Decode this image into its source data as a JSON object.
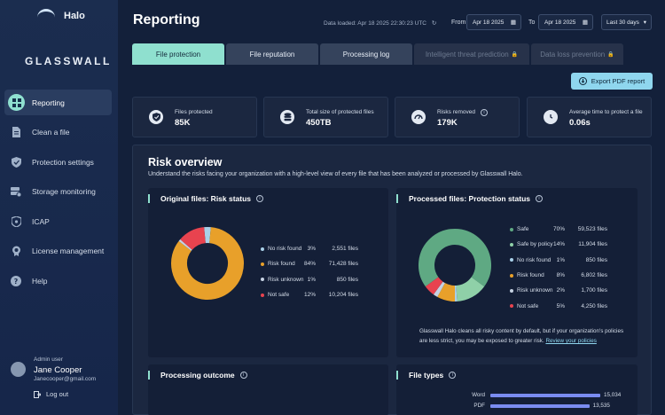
{
  "sidebar": {
    "brand": "Halo",
    "logo": "GLASSWALL",
    "items": [
      {
        "label": "Reporting",
        "icon": "grid-icon",
        "active": true
      },
      {
        "label": "Clean a file",
        "icon": "document-icon"
      },
      {
        "label": "Protection settings",
        "icon": "shield-check-icon"
      },
      {
        "label": "Storage monitoring",
        "icon": "storage-icon"
      },
      {
        "label": "ICAP",
        "icon": "shield-icon"
      },
      {
        "label": "License management",
        "icon": "badge-icon"
      },
      {
        "label": "Help",
        "icon": "help-icon"
      }
    ],
    "user": {
      "role": "Admin user",
      "name": "Jane Cooper",
      "email": "Janecooper@gmail.com"
    },
    "logout_label": "Log out"
  },
  "header": {
    "title": "Reporting",
    "data_loaded": "Data loaded: Apr 18 2025   22:30:23 UTC",
    "from_label": "From",
    "from_date": "Apr 18 2025",
    "to_label": "To",
    "to_date": "Apr 18 2025",
    "range": "Last 30 days"
  },
  "tabs": [
    {
      "label": "File protection",
      "state": "active"
    },
    {
      "label": "File reputation",
      "state": "normal"
    },
    {
      "label": "Processing log",
      "state": "normal"
    },
    {
      "label": "Intelligent threat prediction",
      "state": "disabled"
    },
    {
      "label": "Data loss prevention",
      "state": "disabled"
    }
  ],
  "export_label": "Export PDF report",
  "stats": [
    {
      "label": "Files protected",
      "value": "85K",
      "icon": "shield-icon"
    },
    {
      "label": "Total size of protected files",
      "value": "450TB",
      "icon": "database-icon"
    },
    {
      "label": "Risks removed",
      "value": "179K",
      "icon": "gauge-icon"
    },
    {
      "label": "Average time to protect a file",
      "value": "0.06s",
      "icon": "clock-icon"
    }
  ],
  "risk_overview": {
    "title": "Risk overview",
    "description": "Understand the risks facing your organization with a high-level view of every file that has been analyzed or processed by Glasswall Halo."
  },
  "original_files": {
    "title": "Original files: Risk status",
    "items": [
      {
        "name": "No risk found",
        "pct": "3%",
        "files": "2,551 files",
        "value": 3,
        "color": "#a9d0e8"
      },
      {
        "name": "Risk found",
        "pct": "84%",
        "files": "71,428 files",
        "value": 84,
        "color": "#e8a02a"
      },
      {
        "name": "Risk unknown",
        "pct": "1%",
        "files": "850 files",
        "value": 1,
        "color": "#c6d2e2"
      },
      {
        "name": "Not safe",
        "pct": "12%",
        "files": "10,204 files",
        "value": 12,
        "color": "#e8434f"
      }
    ]
  },
  "processed_files": {
    "title": "Processed files: Protection status",
    "items": [
      {
        "name": "Safe",
        "pct": "70%",
        "files": "59,523 files",
        "value": 70,
        "color": "#5fa983"
      },
      {
        "name": "Safe by policy",
        "pct": "14%",
        "files": "11,904 files",
        "value": 14,
        "color": "#8fd0a8"
      },
      {
        "name": "No risk found",
        "pct": "1%",
        "files": "850 files",
        "value": 1,
        "color": "#a9d0e8"
      },
      {
        "name": "Risk found",
        "pct": "8%",
        "files": "6,802 files",
        "value": 8,
        "color": "#e8a02a"
      },
      {
        "name": "Risk unknown",
        "pct": "2%",
        "files": "1,700 files",
        "value": 2,
        "color": "#c6d2e2"
      },
      {
        "name": "Not safe",
        "pct": "5%",
        "files": "4,250 files",
        "value": 5,
        "color": "#e8434f"
      }
    ],
    "note": "Glasswall Halo cleans all risky content by default, but if your organization's policies are less strict, you may be exposed to greater risk.",
    "link": "Review your policies"
  },
  "processing_outcome": {
    "title": "Processing outcome"
  },
  "file_types": {
    "title": "File types",
    "items": [
      {
        "name": "Word",
        "value": 15034,
        "label": "15,034"
      },
      {
        "name": "PDF",
        "value": 13535,
        "label": "13,535"
      }
    ]
  }
}
